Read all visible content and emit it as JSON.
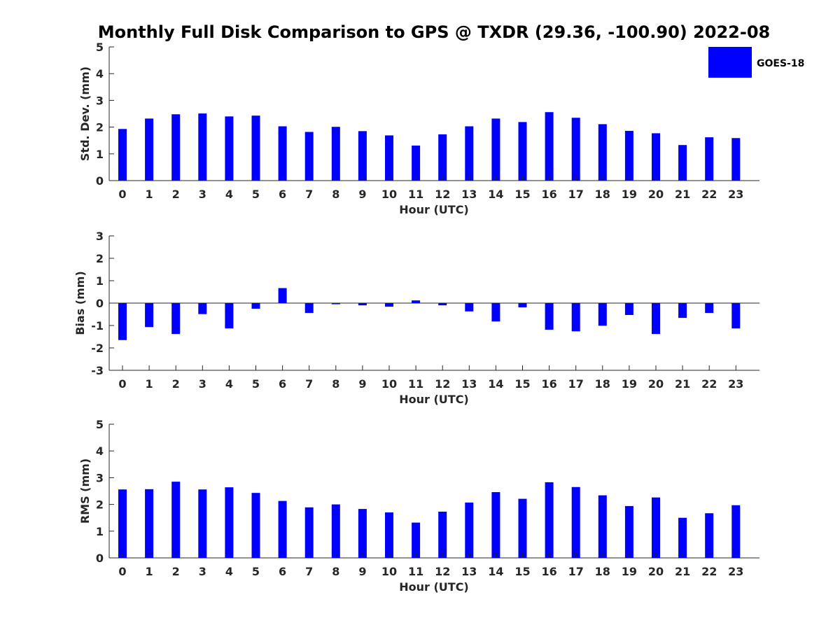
{
  "title": "Monthly Full Disk Comparison to GPS @ TXDR (29.36, -100.90) 2022-08",
  "legend": {
    "label": "GOES-18",
    "color": "#0000ff",
    "placement": "top-right"
  },
  "chart_data": [
    {
      "type": "bar",
      "title": "Monthly Full Disk Comparison to GPS @ TXDR (29.36, -100.90) 2022-08",
      "xlabel": "Hour (UTC)",
      "ylabel": "Std. Dev. (mm)",
      "ylim": [
        0,
        5
      ],
      "yticks": [
        "0",
        "1",
        "2",
        "3",
        "4",
        "5"
      ],
      "categories": [
        "0",
        "1",
        "2",
        "3",
        "4",
        "5",
        "6",
        "7",
        "8",
        "9",
        "10",
        "11",
        "12",
        "13",
        "14",
        "15",
        "16",
        "17",
        "18",
        "19",
        "20",
        "21",
        "22",
        "23"
      ],
      "series": [
        {
          "name": "GOES-18",
          "color": "#0000ff",
          "values": [
            1.93,
            2.32,
            2.48,
            2.51,
            2.4,
            2.43,
            2.03,
            1.82,
            2.01,
            1.85,
            1.69,
            1.31,
            1.73,
            2.03,
            2.32,
            2.19,
            2.56,
            2.35,
            2.11,
            1.86,
            1.77,
            1.33,
            1.62,
            1.59
          ]
        }
      ]
    },
    {
      "type": "bar",
      "xlabel": "Hour (UTC)",
      "ylabel": "Bias (mm)",
      "ylim": [
        -3,
        3
      ],
      "yticks": [
        "-3",
        "-2",
        "-1",
        "0",
        "1",
        "2",
        "3"
      ],
      "categories": [
        "0",
        "1",
        "2",
        "3",
        "4",
        "5",
        "6",
        "7",
        "8",
        "9",
        "10",
        "11",
        "12",
        "13",
        "14",
        "15",
        "16",
        "17",
        "18",
        "19",
        "20",
        "21",
        "22",
        "23"
      ],
      "series": [
        {
          "name": "GOES-18",
          "color": "#0000ff",
          "values": [
            -1.65,
            -1.07,
            -1.38,
            -0.49,
            -1.13,
            -0.25,
            0.67,
            -0.44,
            -0.05,
            -0.1,
            -0.16,
            0.12,
            -0.1,
            -0.37,
            -0.82,
            -0.19,
            -1.19,
            -1.26,
            -1.01,
            -0.53,
            -1.38,
            -0.66,
            -0.44,
            -1.13
          ]
        }
      ]
    },
    {
      "type": "bar",
      "xlabel": "Hour (UTC)",
      "ylabel": "RMS (mm)",
      "ylim": [
        0,
        5
      ],
      "yticks": [
        "0",
        "1",
        "2",
        "3",
        "4",
        "5"
      ],
      "categories": [
        "0",
        "1",
        "2",
        "3",
        "4",
        "5",
        "6",
        "7",
        "8",
        "9",
        "10",
        "11",
        "12",
        "13",
        "14",
        "15",
        "16",
        "17",
        "18",
        "19",
        "20",
        "21",
        "22",
        "23"
      ],
      "series": [
        {
          "name": "GOES-18",
          "color": "#0000ff",
          "values": [
            2.56,
            2.57,
            2.85,
            2.56,
            2.64,
            2.43,
            2.13,
            1.89,
            2.0,
            1.83,
            1.7,
            1.32,
            1.73,
            2.07,
            2.46,
            2.21,
            2.83,
            2.65,
            2.34,
            1.94,
            2.26,
            1.5,
            1.67,
            1.97
          ]
        }
      ]
    }
  ]
}
